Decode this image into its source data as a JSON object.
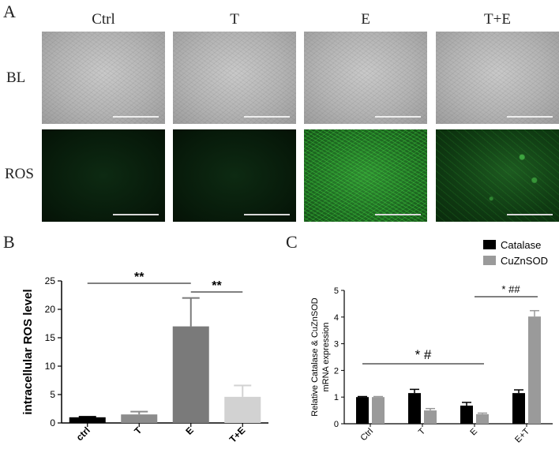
{
  "panels": {
    "A": "A",
    "B": "B",
    "C": "C"
  },
  "panel_a": {
    "columns": [
      "Ctrl",
      "T",
      "E",
      "T+E"
    ],
    "rows": [
      "BL",
      "ROS"
    ],
    "ros_fluorescence": [
      "low",
      "low",
      "high",
      "medium"
    ]
  },
  "chart_data": [
    {
      "type": "bar",
      "panel": "B",
      "categories": [
        "ctrl",
        "T",
        "E",
        "T+E"
      ],
      "values": [
        1.0,
        1.5,
        17.0,
        4.6
      ],
      "errors": [
        0.1,
        0.5,
        5.0,
        2.0
      ],
      "colors": [
        "#000000",
        "#8c8c8c",
        "#7a7a7a",
        "#d2d2d2"
      ],
      "ylabel": "intracellular ROS level",
      "xlabel": "",
      "ylim": [
        0,
        25
      ],
      "yticks": [
        0,
        5,
        10,
        15,
        20,
        25
      ],
      "annotations": [
        {
          "text": "**",
          "from": "ctrl",
          "to": "E"
        },
        {
          "text": "**",
          "from": "E",
          "to": "T+E"
        }
      ]
    },
    {
      "type": "bar",
      "panel": "C",
      "categories": [
        "Ctrl",
        "T",
        "E",
        "E+T"
      ],
      "series": [
        {
          "name": "Catalase",
          "color": "#000000",
          "values": [
            1.0,
            1.15,
            0.68,
            1.15
          ],
          "errors": [
            0.02,
            0.14,
            0.12,
            0.12
          ]
        },
        {
          "name": "CuZnSOD",
          "color": "#9a9a9a",
          "values": [
            1.0,
            0.5,
            0.36,
            4.02
          ],
          "errors": [
            0.02,
            0.07,
            0.04,
            0.22
          ]
        }
      ],
      "ylabel_lines": [
        "Relative Catalase & CuZnSOD",
        "mRNA expression"
      ],
      "xlabel": "",
      "ylim": [
        0,
        5
      ],
      "yticks": [
        0,
        1,
        2,
        3,
        4,
        5
      ],
      "legend_position": "top-right",
      "annotations": [
        {
          "text": "* #",
          "from": "Ctrl",
          "to": "E"
        },
        {
          "text": "* ##",
          "from": "E",
          "to": "E+T"
        }
      ]
    }
  ]
}
